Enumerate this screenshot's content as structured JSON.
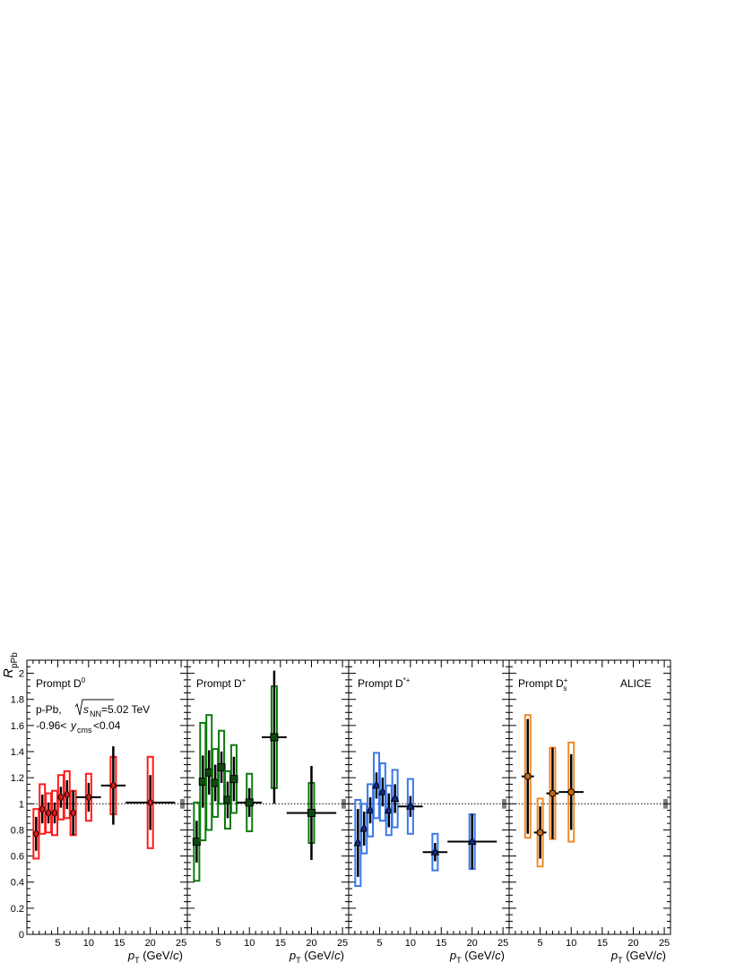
{
  "chart_data": {
    "type": "scatter",
    "y_axis": {
      "label_main": "R",
      "label_sub": "pPb",
      "range": [
        0,
        2.1
      ],
      "ticks": [
        "0",
        "0.2",
        "0.4",
        "0.6",
        "0.8",
        "1",
        "1.2",
        "1.4",
        "1.6",
        "1.8",
        "2"
      ]
    },
    "x_axis": {
      "label_main": "p",
      "label_sub": "T",
      "label_unit": " (GeV/",
      "label_c": "c",
      "label_close": ")",
      "range": [
        0,
        26
      ],
      "ticks": [
        "5",
        "10",
        "15",
        "20",
        "25"
      ]
    },
    "reference_line": 1,
    "normalization_box": {
      "low": 0.963,
      "high": 1.037
    },
    "annotations": {
      "system": "p-Pb, ",
      "sqrt_s_pre": "s",
      "sqrt_s_sub": "NN",
      "sqrt_s_post": "=5.02 TeV",
      "rapidity_pre": "-0.96<",
      "rapidity_var": "y",
      "rapidity_sub": "cms",
      "rapidity_post": "<0.04",
      "experiment": "ALICE"
    },
    "panels": [
      {
        "name": "Prompt D",
        "name_sup": "0",
        "name_sub": "",
        "color": "#ff1a1a",
        "fill": "#d81d1d",
        "marker": "diamond",
        "points": [
          {
            "x": 1.5,
            "xlo": 1,
            "xhi": 2,
            "y": 0.77,
            "stat": 0.13,
            "sys": 0.19
          },
          {
            "x": 2.5,
            "xlo": 2,
            "xhi": 3,
            "y": 0.96,
            "stat": 0.11,
            "sys": 0.19
          },
          {
            "x": 3.5,
            "xlo": 3,
            "xhi": 4,
            "y": 0.93,
            "stat": 0.08,
            "sys": 0.15
          },
          {
            "x": 4.5,
            "xlo": 4,
            "xhi": 5,
            "y": 0.93,
            "stat": 0.08,
            "sys": 0.17
          },
          {
            "x": 5.5,
            "xlo": 5,
            "xhi": 6,
            "y": 1.05,
            "stat": 0.08,
            "sys": 0.17
          },
          {
            "x": 6.5,
            "xlo": 6,
            "xhi": 7,
            "y": 1.07,
            "stat": 0.11,
            "sys": 0.18
          },
          {
            "x": 7.5,
            "xlo": 7,
            "xhi": 8,
            "y": 0.93,
            "stat": 0.17,
            "sys": 0.17
          },
          {
            "x": 10,
            "xlo": 8,
            "xhi": 12,
            "y": 1.05,
            "stat": 0.11,
            "sys": 0.18
          },
          {
            "x": 14,
            "xlo": 12,
            "xhi": 16,
            "y": 1.14,
            "stat": 0.3,
            "sys": 0.22
          },
          {
            "x": 20,
            "xlo": 16,
            "xhi": 24,
            "y": 1.01,
            "stat": 0.21,
            "sys": 0.35
          }
        ]
      },
      {
        "name": "Prompt D",
        "name_sup": "+",
        "name_sub": "",
        "color": "#0d7a0d",
        "fill": "#0e4a0e",
        "marker": "square",
        "points": [
          {
            "x": 1.5,
            "xlo": 1,
            "xhi": 2,
            "y": 0.71,
            "stat": 0.16,
            "sys": 0.3
          },
          {
            "x": 2.5,
            "xlo": 2,
            "xhi": 3,
            "y": 1.17,
            "stat": 0.2,
            "sys": 0.45
          },
          {
            "x": 3.5,
            "xlo": 3,
            "xhi": 4,
            "y": 1.24,
            "stat": 0.17,
            "sys": 0.44
          },
          {
            "x": 4.5,
            "xlo": 4,
            "xhi": 5,
            "y": 1.16,
            "stat": 0.14,
            "sys": 0.26
          },
          {
            "x": 5.5,
            "xlo": 5,
            "xhi": 6,
            "y": 1.28,
            "stat": 0.12,
            "sys": 0.28
          },
          {
            "x": 6.5,
            "xlo": 6,
            "xhi": 7,
            "y": 1.03,
            "stat": 0.14,
            "sys": 0.22
          },
          {
            "x": 7.5,
            "xlo": 7,
            "xhi": 8,
            "y": 1.19,
            "stat": 0.17,
            "sys": 0.26
          },
          {
            "x": 10,
            "xlo": 8,
            "xhi": 12,
            "y": 1.01,
            "stat": 0.11,
            "sys": 0.22
          },
          {
            "x": 14,
            "xlo": 12,
            "xhi": 16,
            "y": 1.51,
            "stat": 0.51,
            "sys": 0.39
          },
          {
            "x": 20,
            "xlo": 16,
            "xhi": 24,
            "y": 0.93,
            "stat": 0.36,
            "sys": 0.23
          }
        ]
      },
      {
        "name": "Prompt D",
        "name_sup": "*+",
        "name_sub": "",
        "color": "#3a78e8",
        "fill": "#122a8a",
        "marker": "triangle",
        "points": [
          {
            "x": 1.5,
            "xlo": 1,
            "xhi": 2,
            "y": 0.7,
            "stat": 0.26,
            "sys": 0.33
          },
          {
            "x": 2.5,
            "xlo": 2,
            "xhi": 3,
            "y": 0.81,
            "stat": 0.13,
            "sys": 0.19
          },
          {
            "x": 3.5,
            "xlo": 3,
            "xhi": 4,
            "y": 0.95,
            "stat": 0.1,
            "sys": 0.2
          },
          {
            "x": 4.5,
            "xlo": 4,
            "xhi": 5,
            "y": 1.14,
            "stat": 0.1,
            "sys": 0.25
          },
          {
            "x": 5.5,
            "xlo": 5,
            "xhi": 6,
            "y": 1.09,
            "stat": 0.11,
            "sys": 0.22
          },
          {
            "x": 6.5,
            "xlo": 6,
            "xhi": 7,
            "y": 0.95,
            "stat": 0.13,
            "sys": 0.19
          },
          {
            "x": 7.5,
            "xlo": 7,
            "xhi": 8,
            "y": 1.04,
            "stat": 0.11,
            "sys": 0.22
          },
          {
            "x": 10,
            "xlo": 8,
            "xhi": 12,
            "y": 0.98,
            "stat": 0.08,
            "sys": 0.21
          },
          {
            "x": 14,
            "xlo": 12,
            "xhi": 16,
            "y": 0.63,
            "stat": 0.07,
            "sys": 0.14
          },
          {
            "x": 20,
            "xlo": 16,
            "xhi": 24,
            "y": 0.71,
            "stat": 0.21,
            "sys": 0.21
          }
        ]
      },
      {
        "name": "Prompt D",
        "name_sup": "+",
        "name_sub": "s",
        "color": "#f08a2a",
        "fill": "#c56a10",
        "marker": "circle",
        "points": [
          {
            "x": 3,
            "xlo": 2,
            "xhi": 4,
            "y": 1.21,
            "stat": 0.44,
            "sys": 0.47
          },
          {
            "x": 5,
            "xlo": 4,
            "xhi": 6,
            "y": 0.78,
            "stat": 0.2,
            "sys": 0.26
          },
          {
            "x": 7,
            "xlo": 6,
            "xhi": 8,
            "y": 1.08,
            "stat": 0.35,
            "sys": 0.35
          },
          {
            "x": 10,
            "xlo": 8,
            "xhi": 12,
            "y": 1.09,
            "stat": 0.29,
            "sys": 0.38
          }
        ]
      }
    ]
  }
}
